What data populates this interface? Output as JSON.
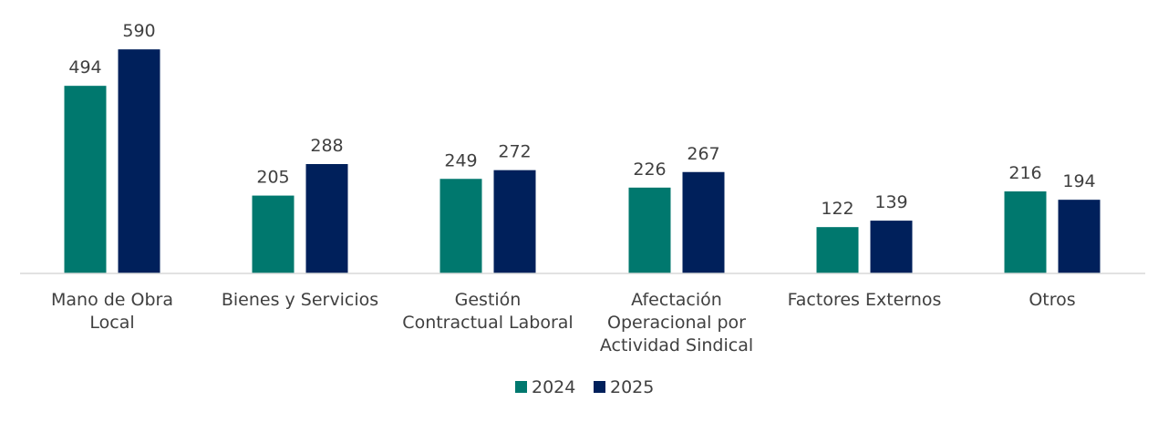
{
  "chart_data": {
    "type": "bar",
    "title": "",
    "xlabel": "",
    "ylabel": "",
    "ylim": [
      0,
      600
    ],
    "grid": false,
    "legend_position": "bottom",
    "categories": [
      [
        "Mano de Obra",
        "Local"
      ],
      [
        "Bienes y Servicios"
      ],
      [
        "Gestión",
        "Contractual Laboral"
      ],
      [
        "Afectación",
        "Operacional por",
        "Actividad Sindical"
      ],
      [
        "Factores Externos"
      ],
      [
        "Otros"
      ]
    ],
    "series": [
      {
        "name": "2024",
        "color": "#00786E",
        "values": [
          494,
          205,
          249,
          226,
          122,
          216
        ]
      },
      {
        "name": "2025",
        "color": "#00205B",
        "values": [
          590,
          288,
          272,
          267,
          139,
          194
        ]
      }
    ]
  }
}
